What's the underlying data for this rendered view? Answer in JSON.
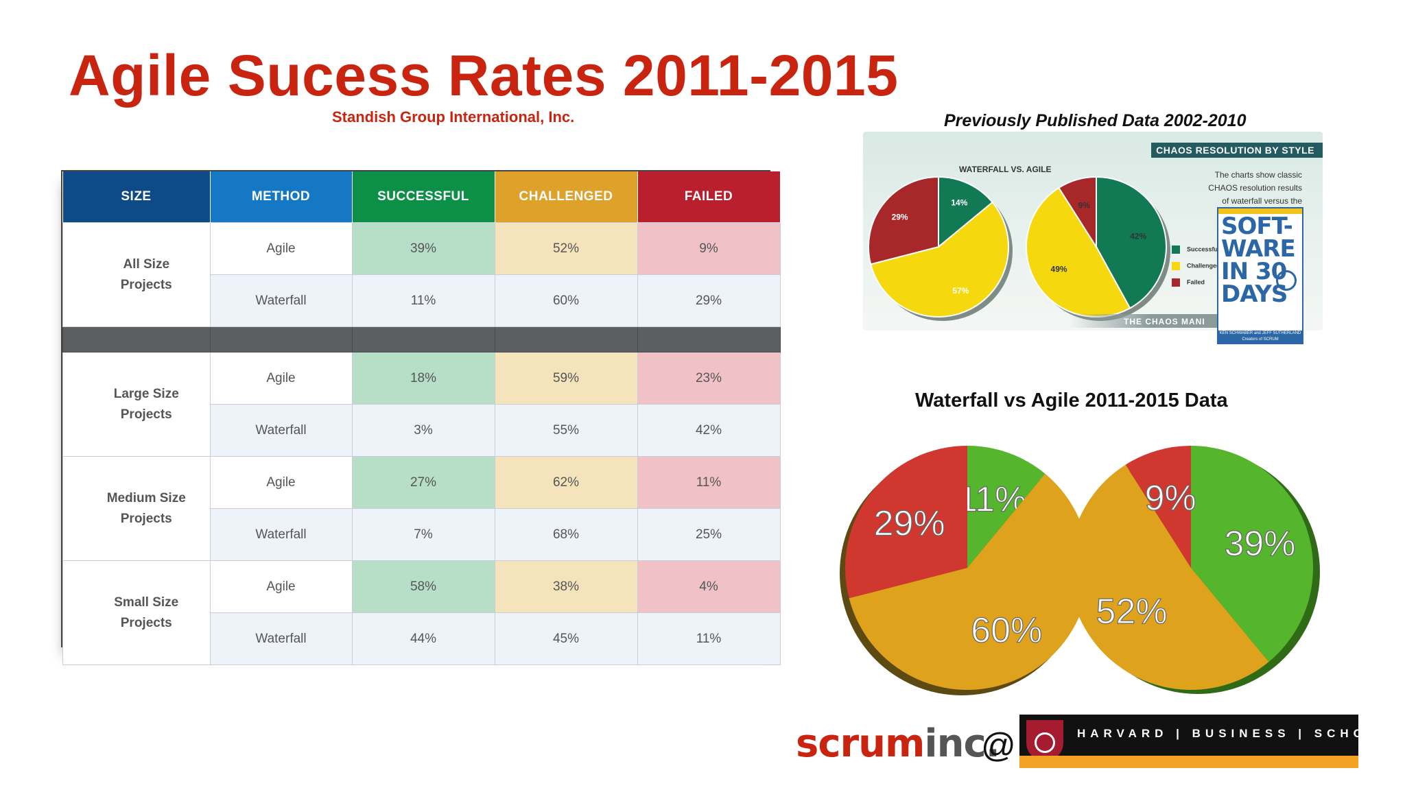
{
  "header": {
    "title": "Agile Sucess Rates 2011-2015",
    "subtitle": "Standish Group International, Inc."
  },
  "table": {
    "columns": [
      "SIZE",
      "METHOD",
      "SUCCESSFUL",
      "CHALLENGED",
      "FAILED"
    ],
    "groups": [
      {
        "size_line1": "All Size",
        "size_line2": "Projects",
        "rows": [
          {
            "method": "Agile",
            "successful": "39%",
            "challenged": "52%",
            "failed": "9%"
          },
          {
            "method": "Waterfall",
            "successful": "11%",
            "challenged": "60%",
            "failed": "29%"
          }
        ]
      },
      {
        "size_line1": "Large Size",
        "size_line2": "Projects",
        "rows": [
          {
            "method": "Agile",
            "successful": "18%",
            "challenged": "59%",
            "failed": "23%"
          },
          {
            "method": "Waterfall",
            "successful": "3%",
            "challenged": "55%",
            "failed": "42%"
          }
        ]
      },
      {
        "size_line1": "Medium Size",
        "size_line2": "Projects",
        "rows": [
          {
            "method": "Agile",
            "successful": "27%",
            "challenged": "62%",
            "failed": "11%"
          },
          {
            "method": "Waterfall",
            "successful": "7%",
            "challenged": "68%",
            "failed": "25%"
          }
        ]
      },
      {
        "size_line1": "Small Size",
        "size_line2": "Projects",
        "rows": [
          {
            "method": "Agile",
            "successful": "58%",
            "challenged": "38%",
            "failed": "4%"
          },
          {
            "method": "Waterfall",
            "successful": "44%",
            "challenged": "45%",
            "failed": "11%"
          }
        ]
      }
    ],
    "colors": {
      "size": "#0d4a86",
      "method": "#1478c4",
      "successful": "#0c8f47",
      "challenged": "#dea12a",
      "failed": "#b91f2c"
    }
  },
  "previous": {
    "title": "Previously Published Data 2002-2010",
    "banner": "CHAOS RESOLUTION BY STYLE",
    "subheading": "WATERFALL VS. AGILE",
    "text_line1": "The charts show classic",
    "text_line2": "CHAOS resolution results",
    "text_line3": "of waterfall versus the",
    "footer": "THE CHAOS MANI",
    "legend": [
      "Successful",
      "Challenged",
      "Failed"
    ],
    "book_title": "SOFT-WARE IN 30 DAYS",
    "book_authors": "KEN SCHWABER and JEFF SUTHERLAND",
    "book_subtitle": "Creators of SCRUM"
  },
  "chart_data": [
    {
      "type": "pie",
      "title": "Previously Published Data 2002-2010",
      "subtitle": "WATERFALL VS. AGILE",
      "pies": [
        {
          "labels": [
            "Successful",
            "Challenged",
            "Failed"
          ],
          "values": [
            14,
            57,
            29
          ]
        },
        {
          "labels": [
            "Successful",
            "Challenged",
            "Failed"
          ],
          "values": [
            42,
            49,
            9
          ]
        }
      ],
      "colors": {
        "Successful": "#117a55",
        "Challenged": "#f5d80e",
        "Failed": "#a8282a"
      },
      "legend": "right"
    },
    {
      "type": "pie",
      "title": "Waterfall vs Agile 2011-2015 Data",
      "pies": [
        {
          "labels": [
            "Successful",
            "Challenged",
            "Failed"
          ],
          "values": [
            11,
            60,
            29
          ],
          "display": [
            "11%",
            "60%",
            "29%"
          ]
        },
        {
          "labels": [
            "Successful",
            "Challenged",
            "Failed"
          ],
          "values": [
            39,
            52,
            9
          ],
          "display": [
            "39%",
            "52%",
            "9%"
          ]
        }
      ],
      "colors": {
        "Successful": "#55b52c",
        "Challenged": "#dea21c",
        "Failed": "#d0372e"
      }
    }
  ],
  "logos": {
    "scrum": "scrum",
    "scrum_suffix": "inc.",
    "at": "@",
    "hbs": "HARVARD | BUSINESS | SCHOOL"
  }
}
